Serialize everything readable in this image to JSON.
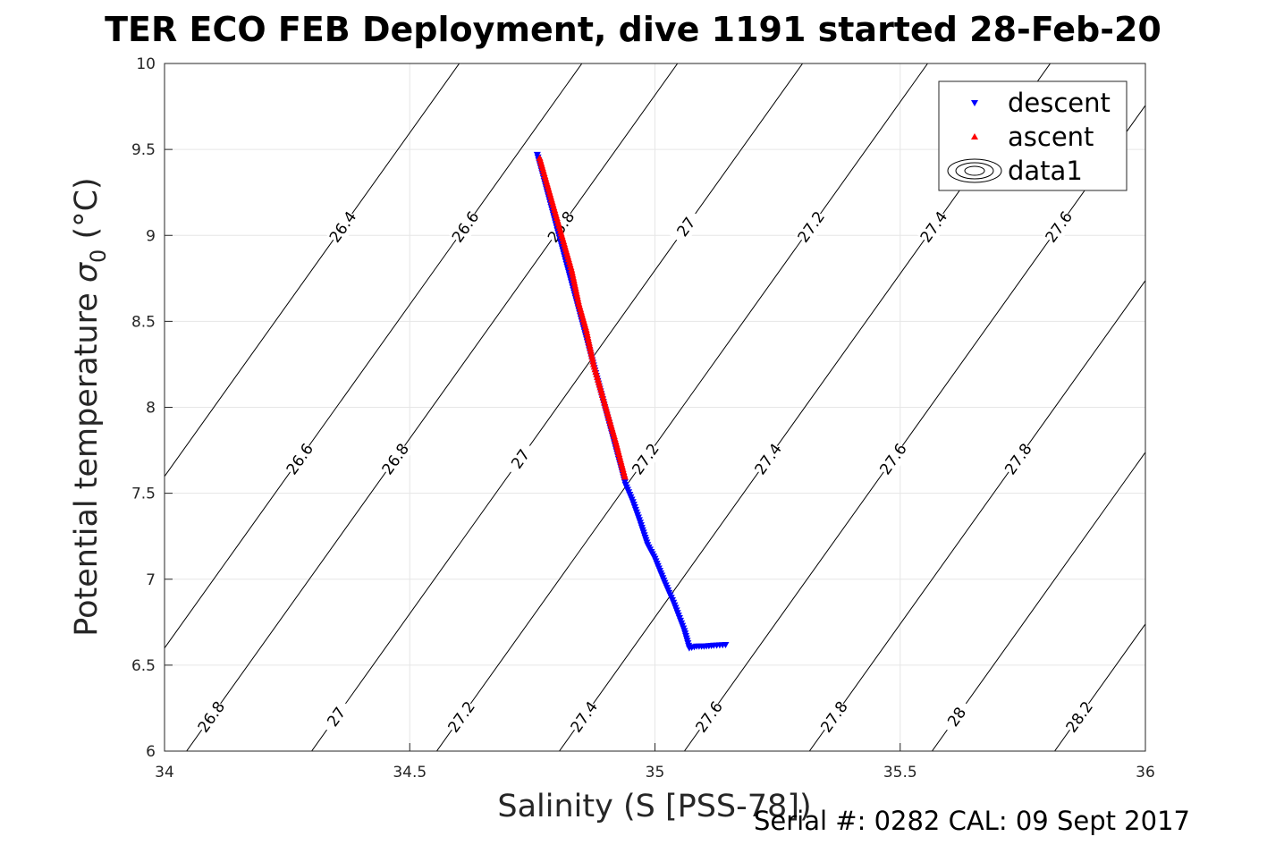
{
  "chart_data": {
    "type": "scatter",
    "title": "TER ECO FEB Deployment, dive 1191 started 28-Feb-20",
    "xlabel": "Salinity (S [PSS-78])",
    "ylabel": "Potential temperature σ₀ (°C)",
    "ylabel_main": "Potential temperature ",
    "ylabel_sigma": "σ",
    "ylabel_sub": "0",
    "ylabel_unit": " (°C)",
    "xlim": [
      34,
      36
    ],
    "ylim": [
      6,
      10
    ],
    "x_ticks": [
      34,
      34.5,
      35,
      35.5,
      36
    ],
    "x_tick_labels": [
      "34",
      "34.5",
      "35",
      "35.5",
      "36"
    ],
    "y_ticks": [
      6,
      6.5,
      7,
      7.5,
      8,
      8.5,
      9,
      9.5,
      10
    ],
    "y_tick_labels": [
      "6",
      "6.5",
      "7",
      "7.5",
      "8",
      "8.5",
      "9",
      "9.5",
      "10"
    ],
    "grid": true,
    "legend_position": "top-right",
    "series": [
      {
        "name": "descent",
        "color": "#0000ff",
        "marker": "triangle-down",
        "points": [
          [
            34.76,
            9.47
          ],
          [
            34.94,
            7.55
          ],
          [
            34.955,
            7.45
          ],
          [
            34.97,
            7.33
          ],
          [
            34.985,
            7.2
          ],
          [
            35.0,
            7.12
          ],
          [
            35.02,
            6.98
          ],
          [
            35.04,
            6.85
          ],
          [
            35.06,
            6.7
          ],
          [
            35.07,
            6.6
          ],
          [
            35.085,
            6.61
          ],
          [
            35.1,
            6.61
          ],
          [
            35.12,
            6.615
          ],
          [
            35.15,
            6.62
          ]
        ]
      },
      {
        "name": "ascent",
        "color": "#ff0000",
        "marker": "triangle-up",
        "points": [
          [
            34.765,
            9.45
          ],
          [
            34.78,
            9.3
          ],
          [
            34.8,
            9.1
          ],
          [
            34.815,
            8.95
          ],
          [
            34.83,
            8.8
          ],
          [
            34.845,
            8.6
          ],
          [
            34.86,
            8.45
          ],
          [
            34.875,
            8.25
          ],
          [
            34.89,
            8.1
          ],
          [
            34.905,
            7.95
          ],
          [
            34.92,
            7.8
          ],
          [
            34.94,
            7.58
          ]
        ]
      },
      {
        "name": "data1",
        "type": "contour",
        "levels": [
          26.4,
          26.6,
          26.8,
          27,
          27.2,
          27.4,
          27.6,
          27.8,
          28,
          28.2
        ],
        "level_labels": [
          "26.4",
          "26.6",
          "26.8",
          "27",
          "27.2",
          "27.4",
          "27.6",
          "27.8",
          "28",
          "28.2"
        ]
      }
    ],
    "annotation": "Serial #: 0282  CAL: 09 Sept 2017"
  }
}
